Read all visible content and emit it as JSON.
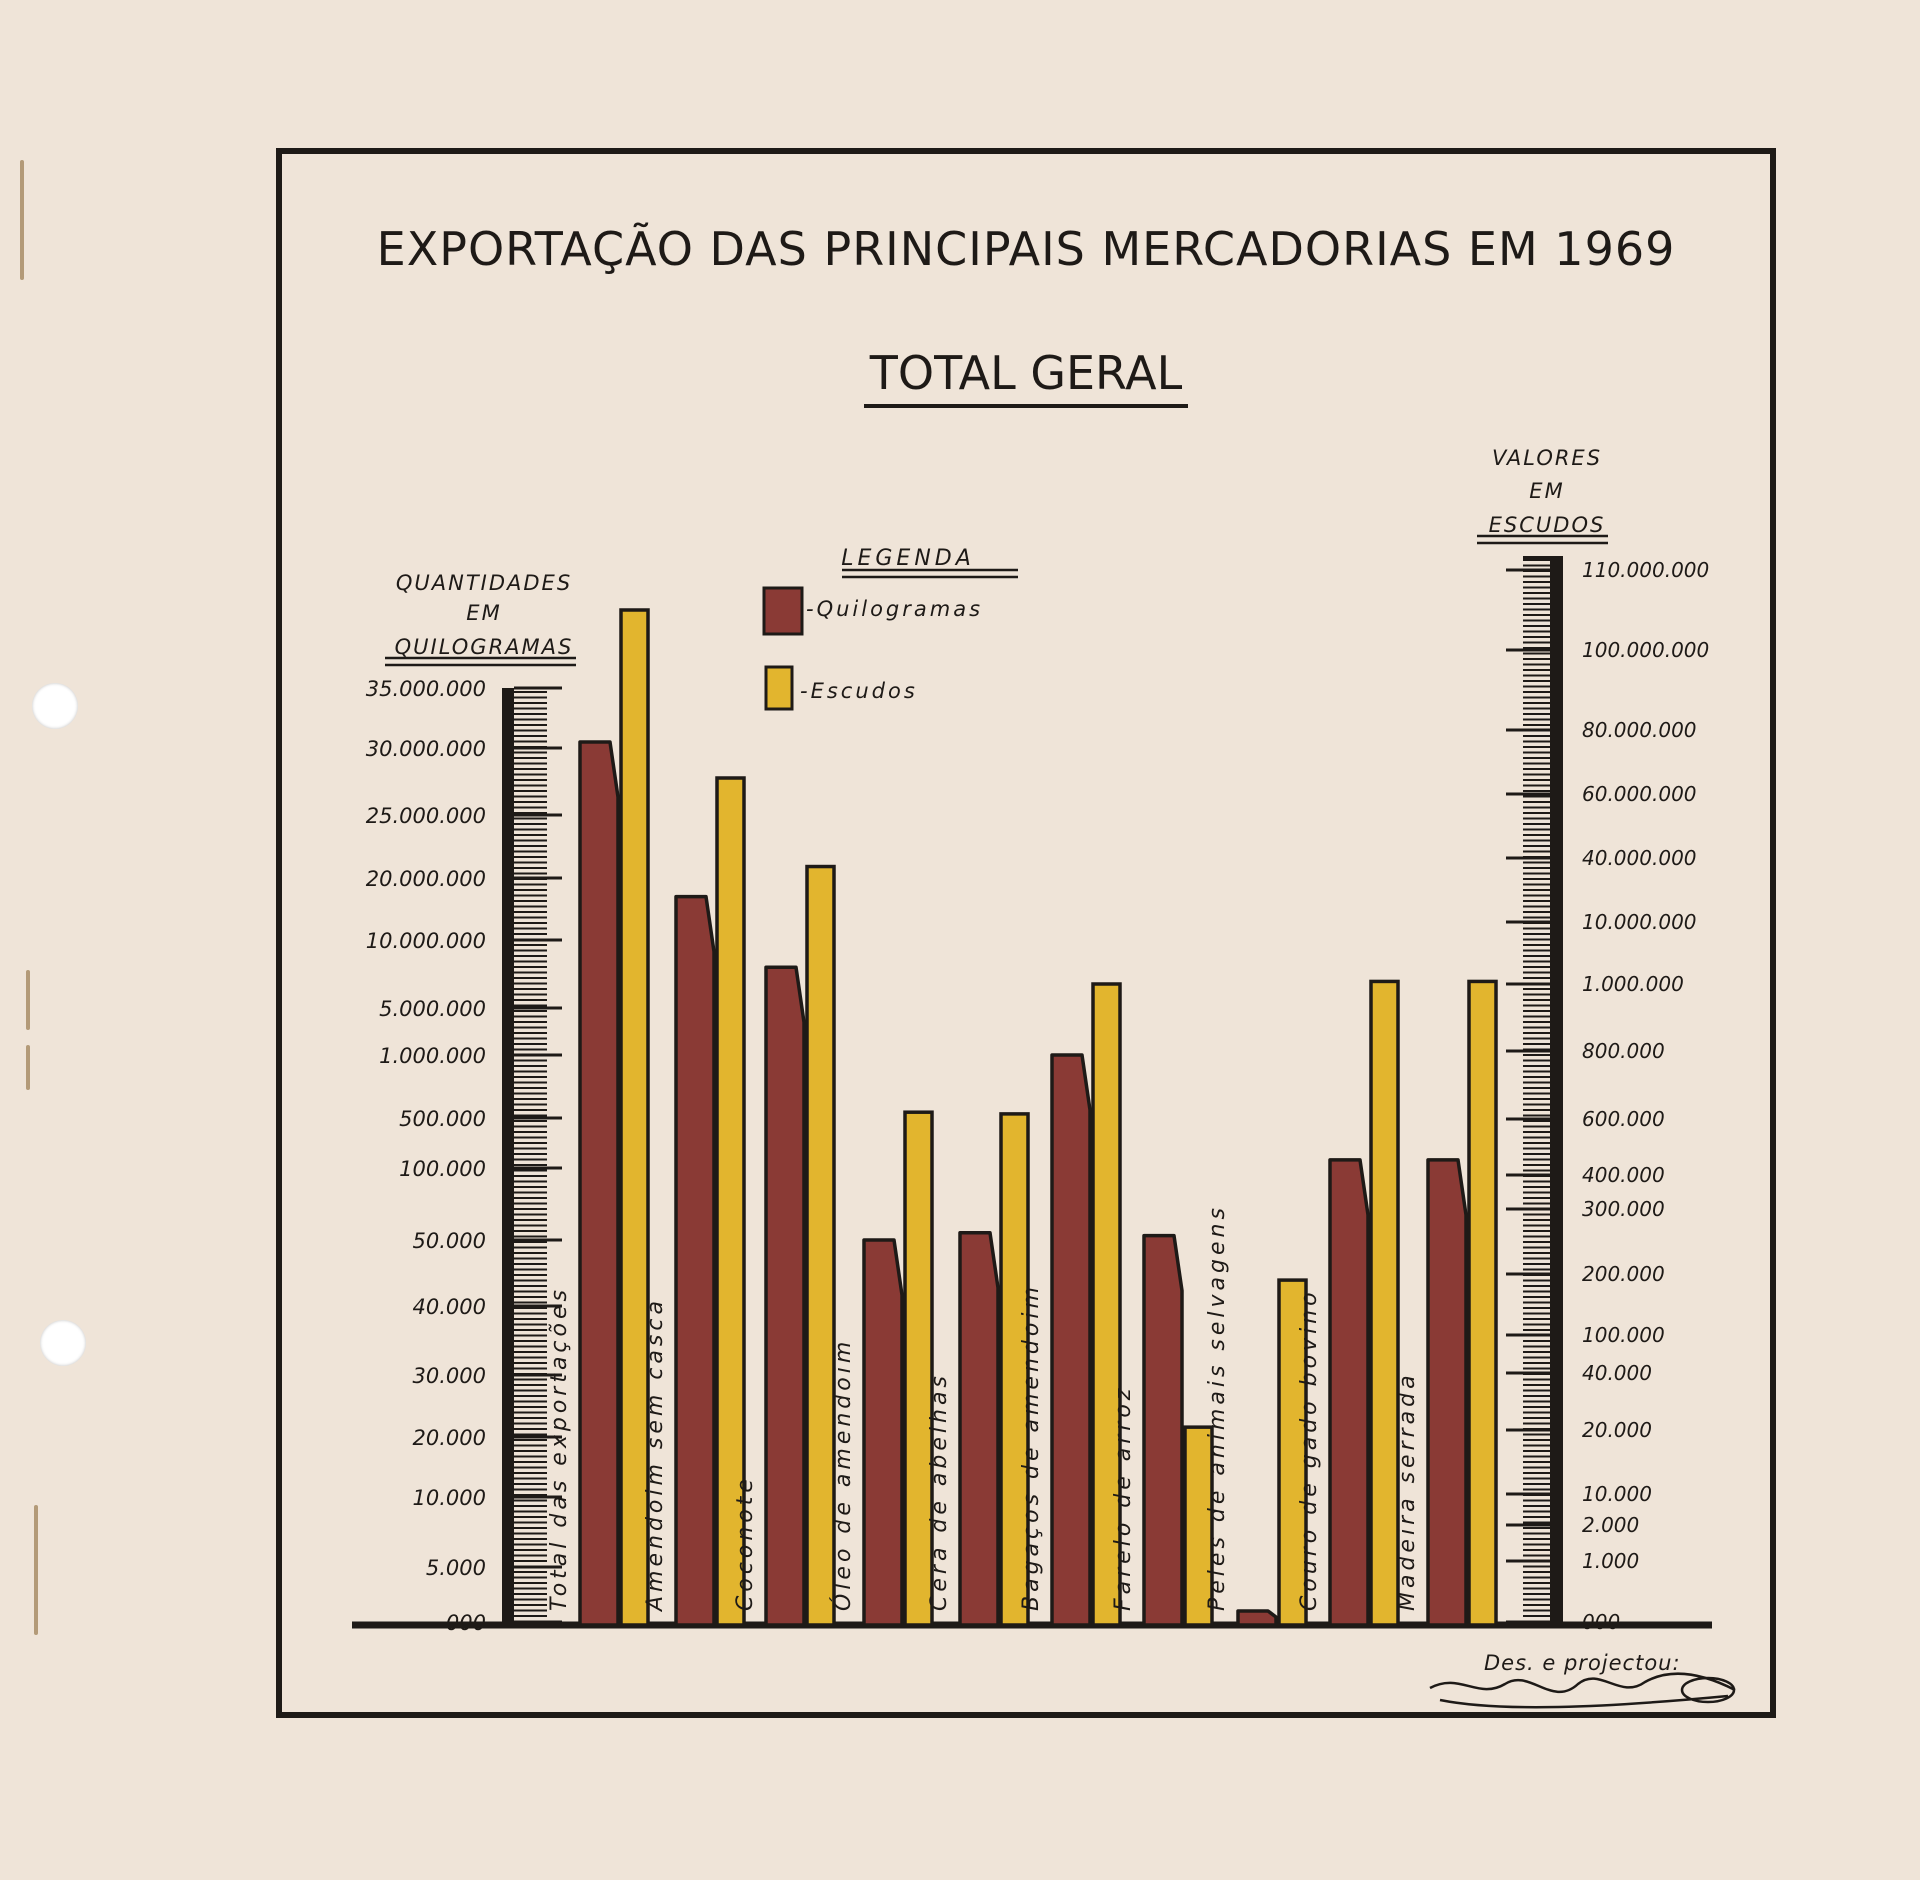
{
  "title": "EXPORTAÇÃO DAS PRINCIPAIS MERCADORIAS EM 1969",
  "subtitle": "TOTAL GERAL",
  "left_axis": {
    "label_lines": [
      "QUANTIDADES",
      "EM",
      "QUILOGRAMAS"
    ],
    "ticks": [
      "35.000.000",
      "30.000.000",
      "25.000.000",
      "20.000.000",
      "10.000.000",
      "5.000.000",
      "1.000.000",
      "500.000",
      "100.000",
      "50.000",
      "40.000",
      "30.000",
      "20.000",
      "10.000",
      "5.000",
      "000"
    ]
  },
  "right_axis": {
    "label_lines": [
      "VALORES",
      "EM",
      "ESCUDOS"
    ],
    "ticks": [
      "110.000.000",
      "100.000.000",
      "80.000.000",
      "60.000.000",
      "40.000.000",
      "10.000.000",
      "1.000.000",
      "800.000",
      "600.000",
      "400.000",
      "300.000",
      "200.000",
      "100.000",
      "40.000",
      "20.000",
      "10.000",
      "2.000",
      "1.000",
      "000"
    ]
  },
  "legend": {
    "title": "LEGENDA",
    "items": [
      {
        "label": "-Quilogramas",
        "color": "#8a3a35"
      },
      {
        "label": "-Escudos",
        "color": "#e2b52e"
      }
    ]
  },
  "signature": {
    "caption": "Des. e projectou:",
    "name": "Rogério Lacerdino"
  },
  "colors": {
    "kg": "#8a3a35",
    "escudos": "#e2b52e",
    "ink": "#1e1a17",
    "paper": "#efe4d8"
  },
  "chart_data": {
    "type": "bar",
    "title": "EXPORTAÇÃO DAS PRINCIPAIS MERCADORIAS EM 1969",
    "subtitle": "TOTAL GERAL",
    "ylabel": "QUANTIDADES EM QUILOGRAMAS",
    "y2label": "VALORES EM ESCUDOS",
    "scale": "non-linear (tick positions as printed)",
    "legend_position": "top-center",
    "categories": [
      "Total das exportações",
      "Amendoim sem casca",
      "Coconote",
      "Óleo de amendoim",
      "Cera de abelhas",
      "Bagaços de amendoim",
      "Farelo de arroz",
      "Peles de animais selvagens",
      "Couro de gado bovino",
      "Madeira serrada"
    ],
    "series": [
      {
        "name": "Quilogramas",
        "axis": "left",
        "values": [
          30500000,
          17000000,
          8000000,
          50000,
          55000,
          1000000,
          53000,
          1000,
          130000,
          130000
        ]
      },
      {
        "name": "Escudos",
        "axis": "right",
        "values": [
          105000000,
          65000000,
          36000000,
          620000,
          615000,
          1000000,
          21000,
          190000,
          1100000,
          1100000
        ]
      }
    ]
  }
}
